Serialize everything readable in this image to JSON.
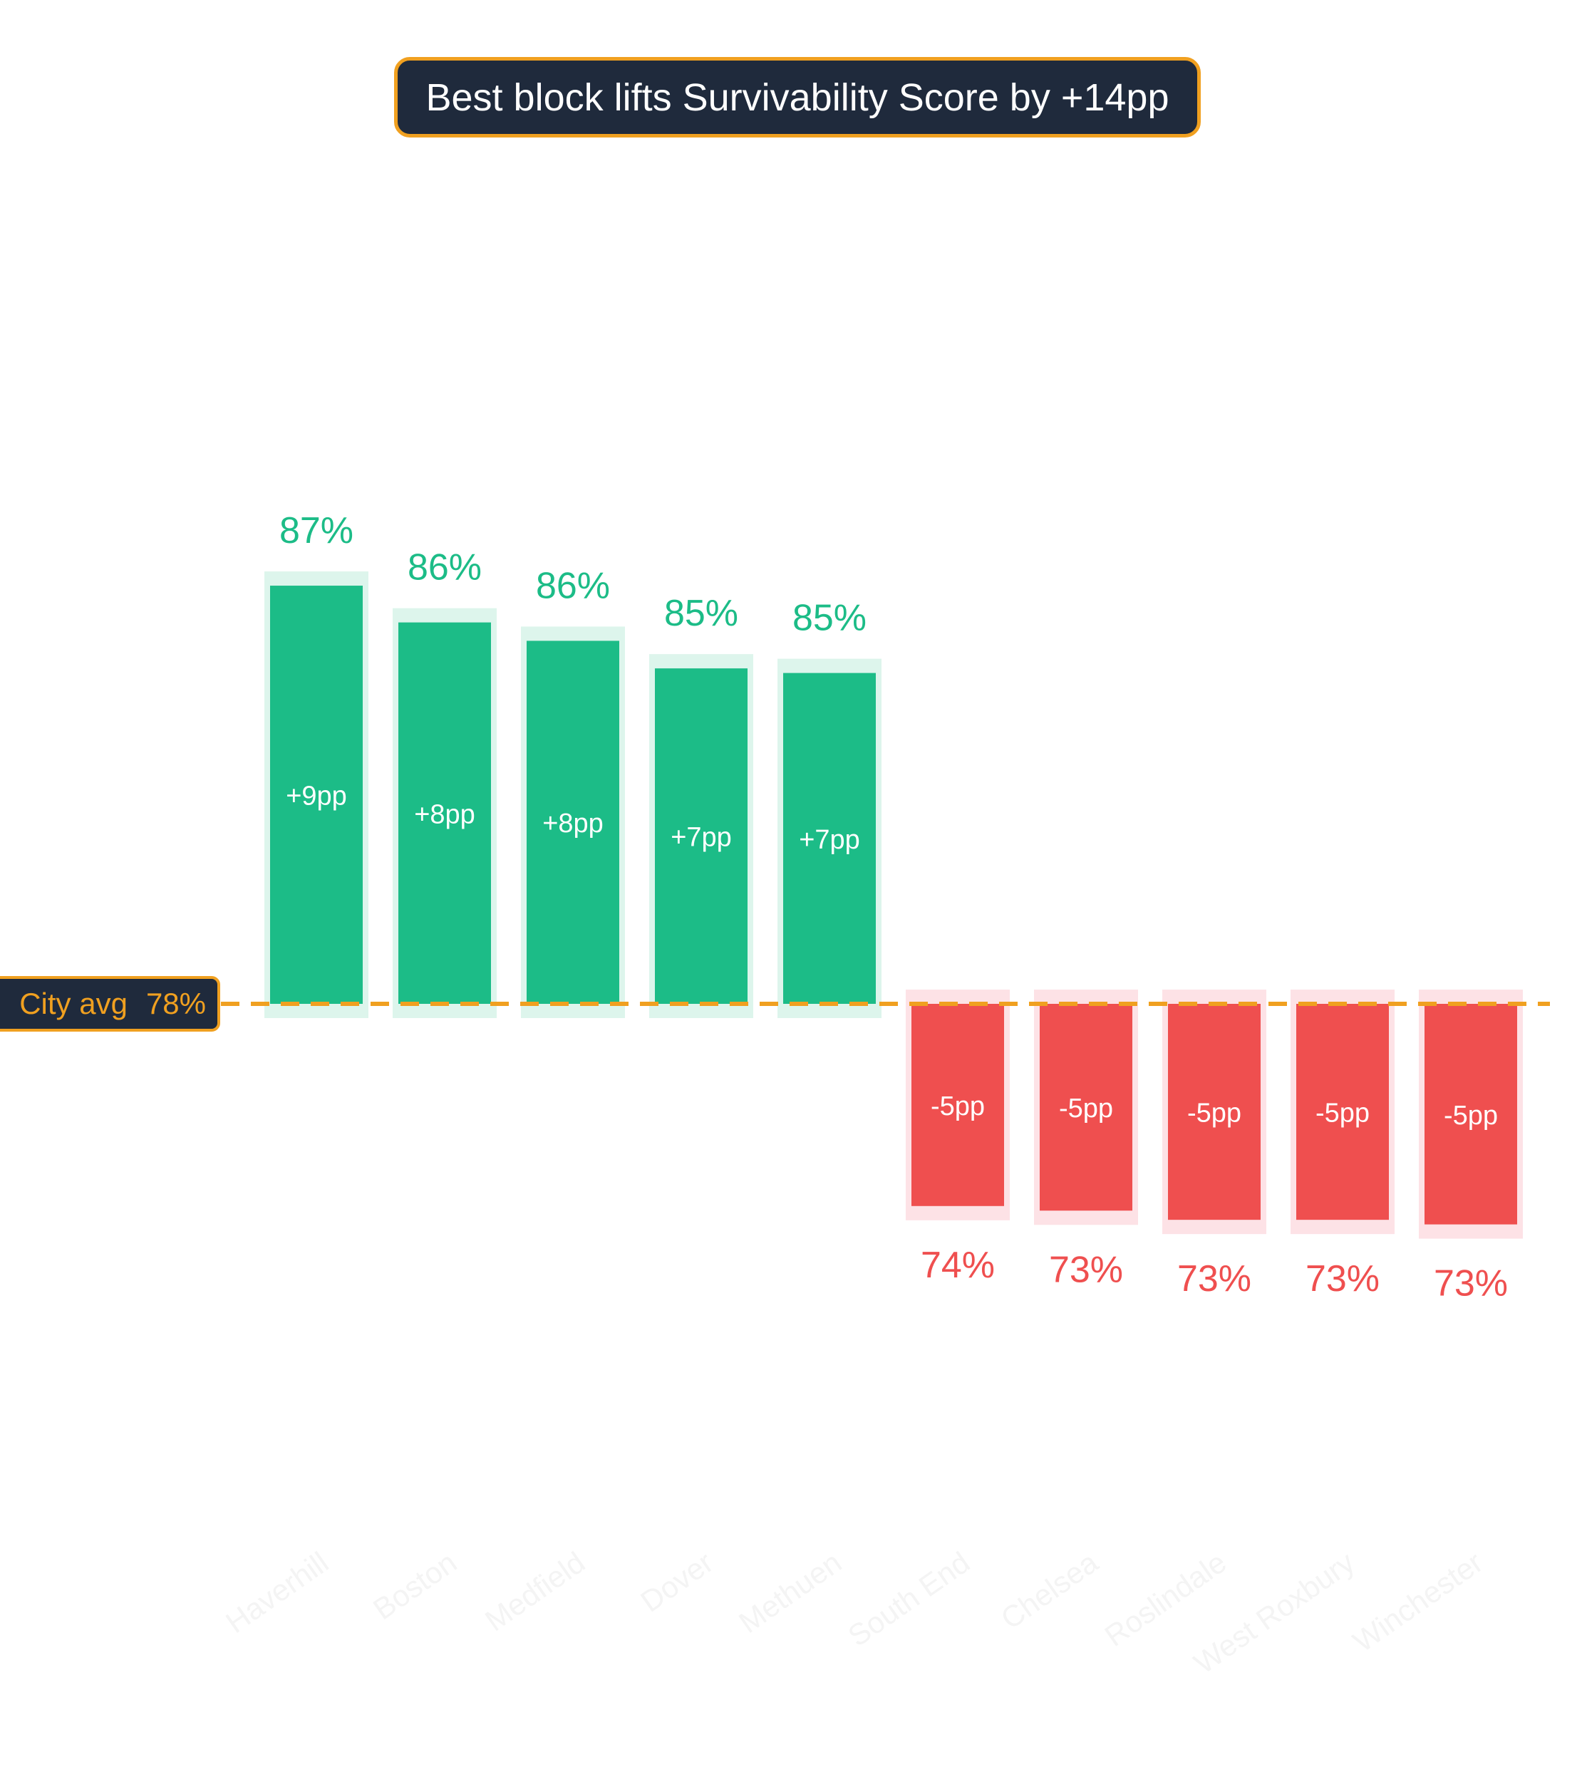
{
  "chart_data": {
    "type": "bar",
    "title": "Best block lifts Survivability Score by +14pp",
    "baseline": {
      "label": "City avg",
      "value": 78,
      "value_label": "78%"
    },
    "categories": [
      "Haverhill",
      "Boston",
      "Medfield",
      "Dover",
      "Methuen",
      "South End",
      "Chelsea",
      "Roslindale",
      "West Roxbury",
      "Winchester"
    ],
    "values": [
      87.1,
      86.3,
      85.9,
      85.3,
      85.2,
      73.6,
      73.5,
      73.3,
      73.3,
      73.2
    ],
    "value_labels": [
      "87%",
      "86%",
      "86%",
      "85%",
      "85%",
      "74%",
      "73%",
      "73%",
      "73%",
      "73%"
    ],
    "delta_labels": [
      "+9pp",
      "+8pp",
      "+8pp",
      "+7pp",
      "+7pp",
      "-5pp",
      "-5pp",
      "-5pp",
      "-5pp",
      "-5pp"
    ],
    "colors": {
      "positive": "#1cbc87",
      "positive_halo": "#ddf5ec",
      "negative": "#ef4f4f",
      "negative_halo": "#fde2e6",
      "baseline": "#f0a020",
      "label_bg": "#1f2a3c",
      "category_text": "#f4f4f4"
    }
  }
}
